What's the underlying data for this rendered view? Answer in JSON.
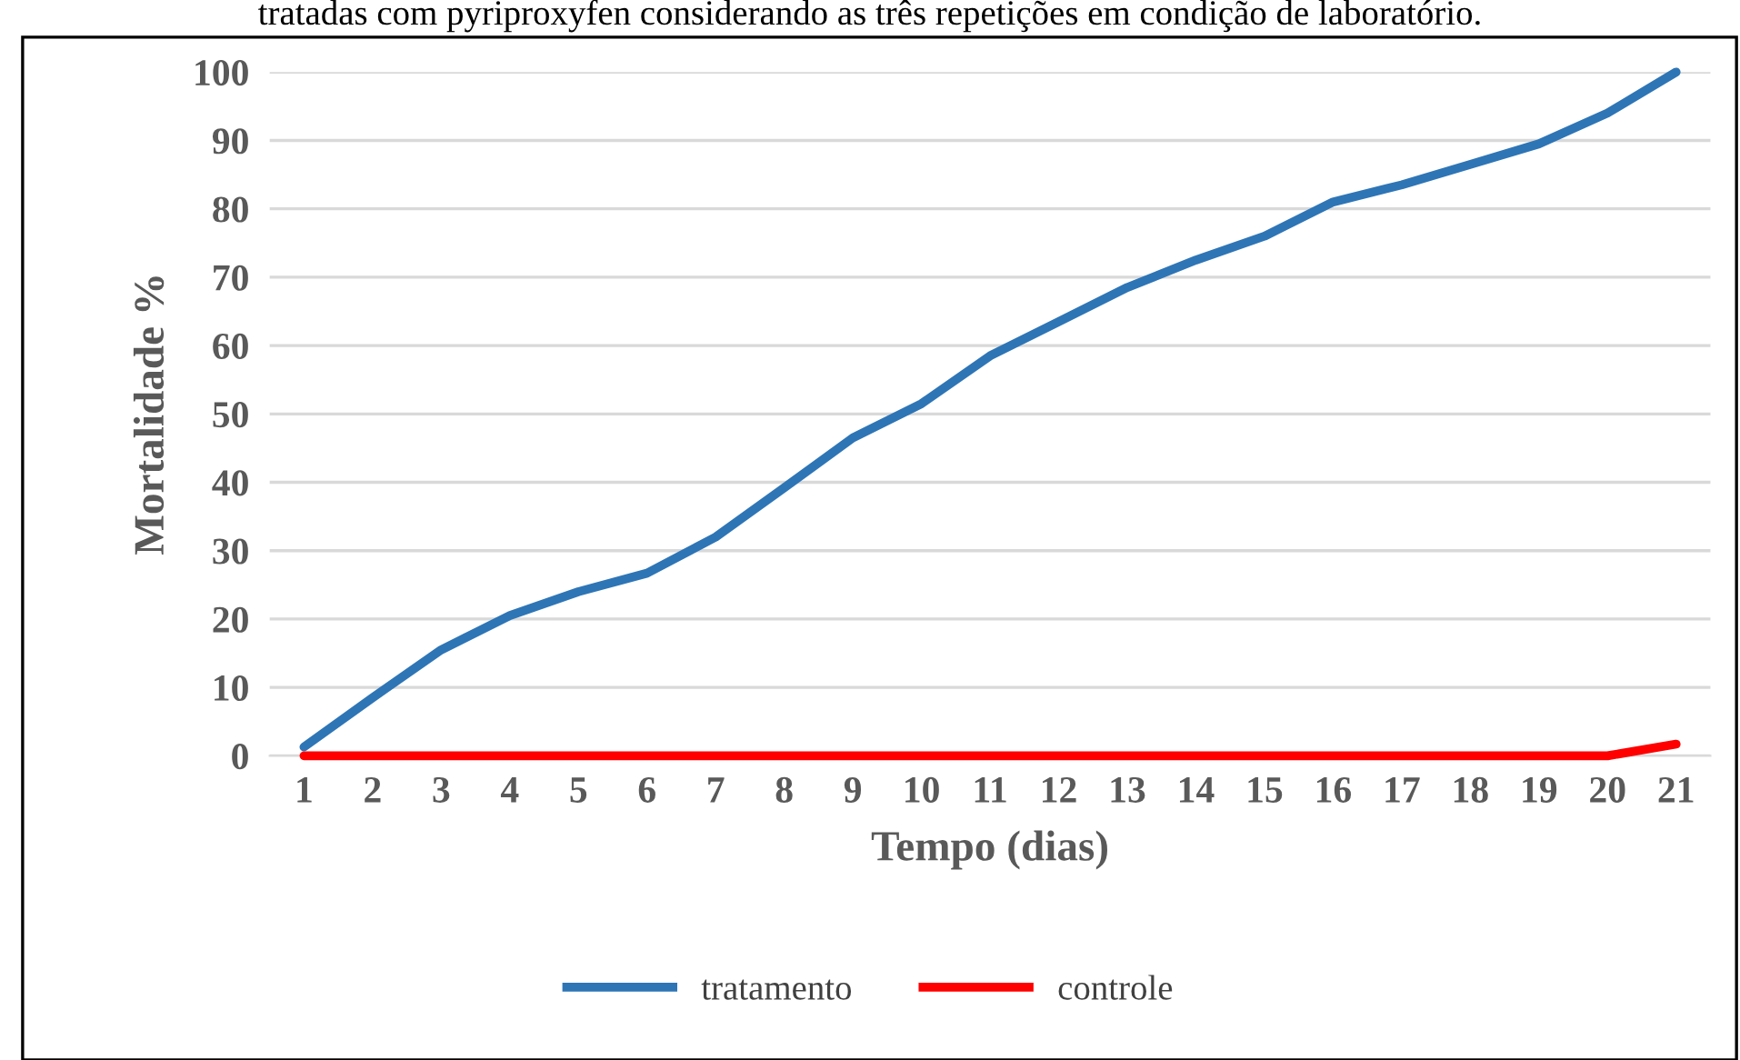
{
  "chart_data": {
    "type": "line",
    "title": "tratadas com pyriproxyfen considerando as três repetições em condição de laboratório.",
    "xlabel": "Tempo (dias)",
    "ylabel": "Mortalidade %",
    "categories": [
      "1",
      "2",
      "3",
      "4",
      "5",
      "6",
      "7",
      "8",
      "9",
      "10",
      "11",
      "12",
      "13",
      "14",
      "15",
      "16",
      "17",
      "18",
      "19",
      "20",
      "21"
    ],
    "series": [
      {
        "name": "tratamento",
        "color": "#2e75b6",
        "values": [
          1.3,
          8.5,
          15.5,
          20.5,
          24,
          26.7,
          32,
          39.2,
          46.5,
          51.5,
          58.5,
          63.5,
          68.5,
          72.5,
          76,
          81,
          83.5,
          86.5,
          89.5,
          94,
          100
        ]
      },
      {
        "name": "controle",
        "color": "#ff0000",
        "values": [
          0,
          0,
          0,
          0,
          0,
          0,
          0,
          0,
          0,
          0,
          0,
          0,
          0,
          0,
          0,
          0,
          0,
          0,
          0,
          0,
          1.7
        ]
      }
    ],
    "ylim": [
      0,
      100
    ],
    "yticks": [
      0,
      10,
      20,
      30,
      40,
      50,
      60,
      70,
      80,
      90,
      100
    ],
    "grid": "y",
    "legend": "bottom",
    "marker": "none",
    "line_style": "solid"
  }
}
